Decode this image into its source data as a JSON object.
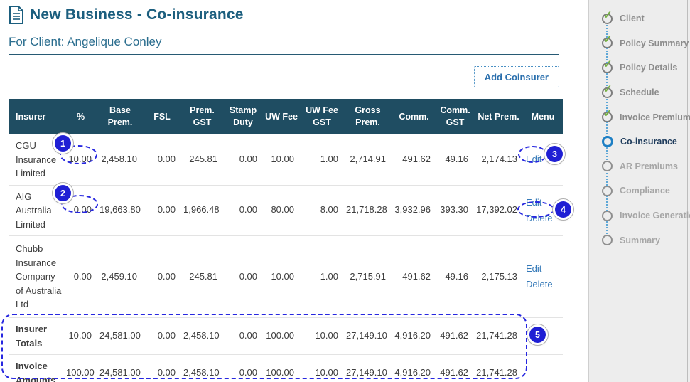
{
  "page": {
    "title": "New Business - Co-insurance",
    "subtitle": "For Client: Angelique Conley",
    "add_button_label": "Add Coinsurer"
  },
  "table": {
    "columns": [
      "Insurer",
      "%",
      "Base Prem.",
      "FSL",
      "Prem. GST",
      "Stamp Duty",
      "UW Fee",
      "UW Fee GST",
      "Gross Prem.",
      "Comm.",
      "Comm. GST",
      "Net Prem.",
      "Menu"
    ],
    "rows": [
      {
        "insurer": "CGU Insurance Limited",
        "values": [
          "10.00",
          "2,458.10",
          "0.00",
          "245.81",
          "0.00",
          "10.00",
          "1.00",
          "2,714.91",
          "491.62",
          "49.16",
          "2,174.13"
        ],
        "menu": [
          "Edit"
        ]
      },
      {
        "insurer": "AIG Australia Limited",
        "values": [
          "0.00",
          "19,663.80",
          "0.00",
          "1,966.48",
          "0.00",
          "80.00",
          "8.00",
          "21,718.28",
          "3,932.96",
          "393.30",
          "17,392.02"
        ],
        "menu": [
          "Edit",
          "Delete"
        ]
      },
      {
        "insurer": "Chubb Insurance Company of Australia Ltd",
        "values": [
          "0.00",
          "2,459.10",
          "0.00",
          "245.81",
          "0.00",
          "10.00",
          "1.00",
          "2,715.91",
          "491.62",
          "49.16",
          "2,175.13"
        ],
        "menu": [
          "Edit",
          "Delete"
        ]
      }
    ],
    "summary_rows": [
      {
        "label": "Insurer Totals",
        "values": [
          "10.00",
          "24,581.00",
          "0.00",
          "2,458.10",
          "0.00",
          "100.00",
          "10.00",
          "27,149.10",
          "4,916.20",
          "491.62",
          "21,741.28"
        ]
      },
      {
        "label": "Invoice Amounts",
        "values": [
          "100.00",
          "24,581.00",
          "0.00",
          "2,458.10",
          "0.00",
          "100.00",
          "10.00",
          "27,149.10",
          "4,916.20",
          "491.62",
          "21,741.28"
        ]
      }
    ]
  },
  "annotations": {
    "badges": [
      "1",
      "2",
      "3",
      "4",
      "5"
    ]
  },
  "sidebar": {
    "steps": [
      {
        "label": "Client",
        "state": "done"
      },
      {
        "label": "Policy Summary",
        "state": "done"
      },
      {
        "label": "Policy Details",
        "state": "done"
      },
      {
        "label": "Schedule",
        "state": "done"
      },
      {
        "label": "Invoice Premiums",
        "state": "done"
      },
      {
        "label": "Co-insurance",
        "state": "active"
      },
      {
        "label": "AR Premiums",
        "state": "todo"
      },
      {
        "label": "Compliance",
        "state": "todo"
      },
      {
        "label": "Invoice Generation",
        "state": "todo"
      },
      {
        "label": "Summary",
        "state": "todo"
      }
    ]
  },
  "colors": {
    "title": "#1b5e7e",
    "table_header_bg": "#1f4d62",
    "link": "#3579b8",
    "annotation_blue": "#2727e0",
    "badge_bg": "#1f1fd4",
    "sidebar_bg": "#ededed",
    "check_green": "#76b043",
    "active_step_ring": "#1d7fc4"
  }
}
